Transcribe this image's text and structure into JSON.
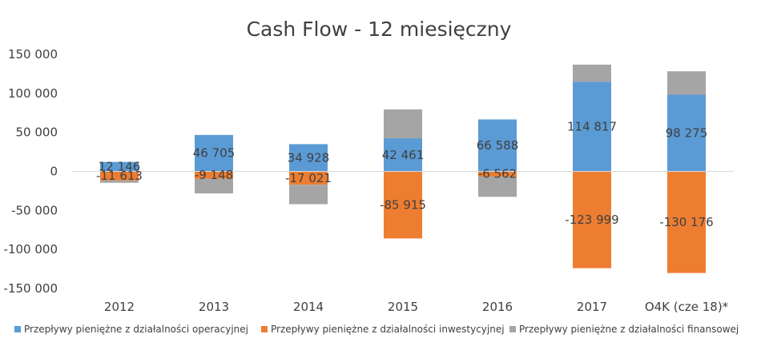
{
  "chart_data": {
    "type": "bar",
    "stacked": true,
    "title": "Cash Flow - 12 miesięczny",
    "xlabel": "",
    "ylabel": "",
    "ylim": [
      -150000,
      150000
    ],
    "yticks": [
      150000,
      100000,
      50000,
      0,
      -50000,
      -100000,
      -150000
    ],
    "ytick_labels": [
      "150 000",
      "100 000",
      "50 000",
      "0",
      "-50 000",
      "-100 000",
      "-150 000"
    ],
    "categories": [
      "2012",
      "2013",
      "2014",
      "2015",
      "2016",
      "2017",
      "O4K (cze 18)*"
    ],
    "series": [
      {
        "name": "Przepływy pieniężne z działalności operacyjnej",
        "color": "#5B9BD5",
        "values": [
          12146,
          46705,
          34928,
          42461,
          66588,
          114817,
          98275
        ],
        "labels": [
          "12 146",
          "46 705",
          "34 928",
          "42 461",
          "66 588",
          "114 817",
          "98 275"
        ]
      },
      {
        "name": "Przepływy pieniężne z działalności inwestycyjnej",
        "color": "#ED7D31",
        "values": [
          -11613,
          -9148,
          -17021,
          -85915,
          -6562,
          -123999,
          -130176
        ],
        "labels": [
          "-11 613",
          "-9 148",
          "-17 021",
          "-85 915",
          "-6 562",
          "-123 999",
          "-130 176"
        ]
      },
      {
        "name": "Przepływy pieniężne z działalności finansowej",
        "color": "#A5A5A5",
        "values": [
          -3000,
          -19000,
          -25000,
          37000,
          -26000,
          22000,
          30000
        ],
        "labels": []
      }
    ],
    "legend": "bottom",
    "grid": false
  }
}
